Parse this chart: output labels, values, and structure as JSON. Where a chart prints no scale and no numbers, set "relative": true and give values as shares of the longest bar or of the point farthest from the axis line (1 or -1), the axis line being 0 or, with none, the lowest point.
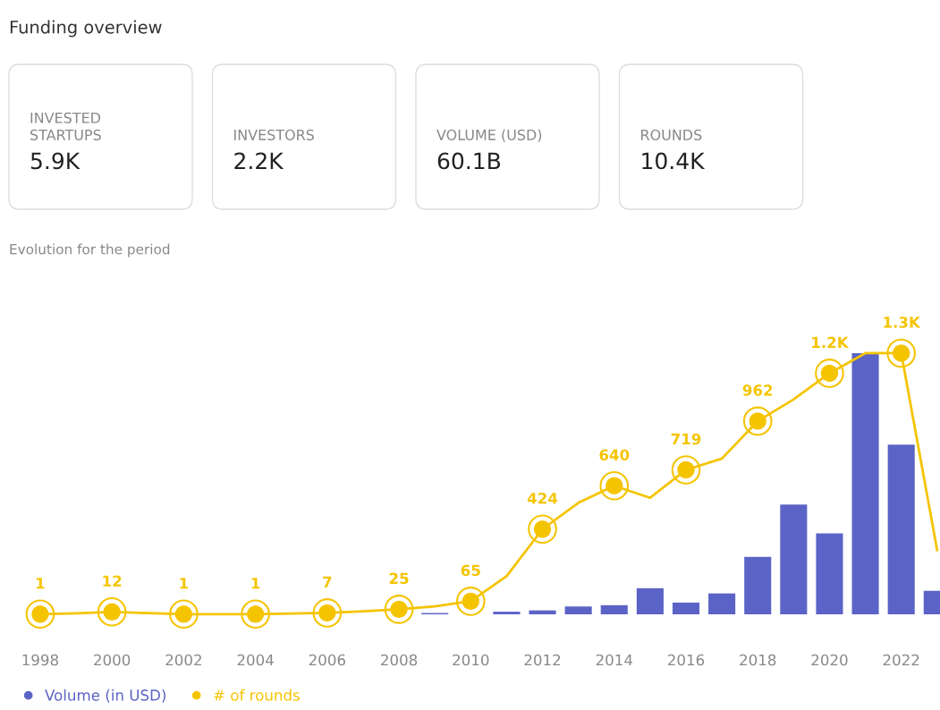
{
  "chart_data": [
    {
      "type": "other",
      "title": "Funding overview",
      "categories": [
        "INVESTED\nSTARTUPS",
        "INVESTORS",
        "VOLUME (USD)",
        "ROUNDS"
      ],
      "value_labels": [
        "5.9K",
        "2.2K",
        "60.1B",
        "10.4K"
      ]
    },
    {
      "type": "bar",
      "title": "Evolution for the period",
      "relative": true,
      "legend": "bottom",
      "categories": [
        "1998",
        null,
        "2000",
        null,
        "2002",
        null,
        "2004",
        null,
        "2006",
        null,
        "2008",
        null,
        "2010",
        null,
        "2012",
        null,
        "2014",
        null,
        "2016",
        null,
        "2018",
        null,
        "2020",
        null,
        "2022",
        null
      ],
      "series": [
        {
          "name": "Volume (in USD)",
          "color": "#5b63c6",
          "values": [
            null,
            null,
            null,
            null,
            null,
            null,
            null,
            null,
            null,
            null,
            null,
            0.005,
            null,
            0.01,
            0.015,
            0.03,
            0.035,
            0.1,
            0.045,
            0.08,
            0.22,
            0.42,
            0.31,
            1,
            0.65,
            0.09
          ]
        }
      ]
    },
    {
      "type": "line",
      "legend": "bottom",
      "marker": "circle",
      "tick_labels": false,
      "categories": [
        "1998",
        null,
        "2000",
        null,
        "2002",
        null,
        "2004",
        null,
        "2006",
        null,
        "2008",
        null,
        "2010",
        null,
        "2012",
        null,
        "2014",
        null,
        "2016",
        null,
        "2018",
        null,
        "2020",
        null,
        "2022",
        null
      ],
      "series": [
        {
          "name": "# of rounds",
          "color": "#f5c400",
          "values": [
            1,
            5,
            12,
            6,
            1,
            1,
            1,
            4,
            7,
            15,
            25,
            40,
            65,
            190,
            424,
            555,
            640,
            580,
            719,
            775,
            962,
            1070,
            1200,
            1300,
            1300,
            320
          ],
          "value_labels": [
            "1",
            null,
            "12",
            null,
            "1",
            null,
            "1",
            null,
            "7",
            null,
            "25",
            null,
            "65",
            null,
            "424",
            null,
            "640",
            null,
            "719",
            null,
            "962",
            null,
            "1.2K",
            null,
            "1.3K",
            null
          ]
        }
      ]
    }
  ]
}
